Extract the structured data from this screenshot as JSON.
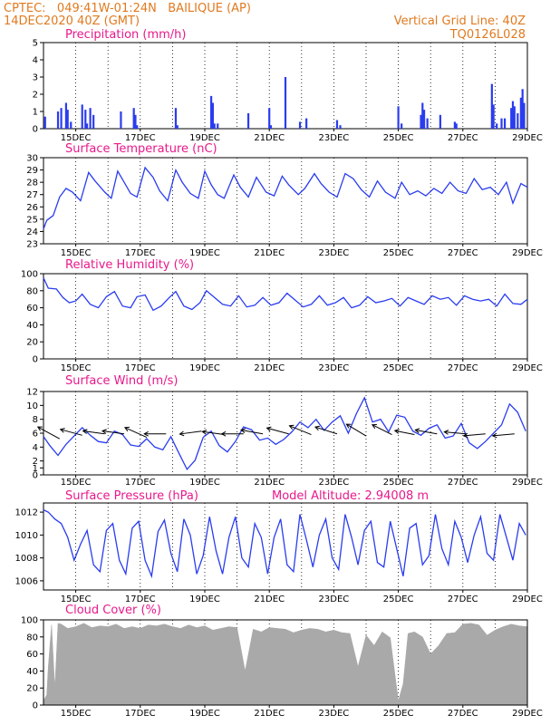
{
  "header": {
    "line1": "CPTEC:   049:41W-01:24N   BAILIQUE (AP)",
    "line2": "14DEC2020 40Z (GMT)",
    "grid_note": "Vertical Grid Line: 40Z",
    "code": "TQ0126L028"
  },
  "colors": {
    "line": "#2a3cf0",
    "bar": "#2a3cf0",
    "cloud": "#a9a9a9",
    "title": "#e8198b",
    "header": "#e07a1f"
  },
  "chart_data": [
    {
      "type": "bar",
      "title": "Precipitation (mm/h)",
      "ylim": [
        0,
        5
      ],
      "yticks": [
        0,
        1,
        2,
        3,
        4,
        5
      ],
      "x_range_days": [
        14,
        29
      ],
      "xtick_labels": [
        "15DEC",
        "17DEC",
        "19DEC",
        "21DEC",
        "23DEC",
        "25DEC",
        "27DEC",
        "29DEC"
      ],
      "x": [
        14.05,
        14.45,
        14.55,
        14.7,
        14.75,
        14.85,
        15.2,
        15.3,
        15.35,
        15.45,
        15.55,
        16.4,
        16.8,
        16.85,
        16.9,
        18.1,
        18.15,
        19.2,
        19.25,
        19.3,
        19.4,
        20.35,
        21.0,
        21.05,
        21.5,
        21.95,
        22.15,
        23.1,
        23.2,
        25.0,
        25.1,
        25.7,
        25.75,
        25.8,
        25.9,
        26.3,
        26.75,
        26.8,
        27.9,
        27.95,
        28.05,
        28.2,
        28.3,
        28.5,
        28.55,
        28.6,
        28.7,
        28.8,
        28.85,
        28.9
      ],
      "values": [
        0.7,
        1.0,
        1.2,
        1.5,
        1.1,
        0.4,
        1.4,
        1.1,
        0.3,
        1.2,
        0.8,
        1.0,
        1.2,
        0.8,
        0.2,
        1.2,
        0.2,
        1.9,
        1.5,
        0.3,
        0.3,
        0.9,
        1.2,
        0.2,
        3.0,
        0.4,
        0.6,
        0.5,
        0.2,
        1.3,
        0.3,
        0.8,
        1.5,
        1.1,
        0.6,
        0.8,
        0.4,
        0.3,
        2.6,
        1.4,
        0.3,
        0.6,
        0.6,
        1.2,
        1.6,
        1.3,
        0.9,
        1.8,
        2.3,
        1.5
      ]
    },
    {
      "type": "line",
      "title": "Surface Temperature (nC)",
      "ylim": [
        23,
        30
      ],
      "yticks": [
        23,
        24,
        25,
        26,
        27,
        28,
        29,
        30
      ],
      "x_range_days": [
        14,
        29
      ],
      "xtick_labels": [
        "15DEC",
        "17DEC",
        "19DEC",
        "21DEC",
        "23DEC",
        "25DEC",
        "27DEC",
        "29DEC"
      ],
      "x": [
        14.0,
        14.1,
        14.3,
        14.5,
        14.7,
        14.9,
        15.15,
        15.4,
        15.6,
        15.9,
        16.1,
        16.3,
        16.5,
        16.7,
        16.9,
        17.15,
        17.4,
        17.6,
        17.85,
        18.1,
        18.3,
        18.55,
        18.8,
        19.0,
        19.2,
        19.4,
        19.6,
        19.9,
        20.1,
        20.35,
        20.6,
        20.9,
        21.15,
        21.4,
        21.6,
        21.9,
        22.1,
        22.4,
        22.6,
        22.85,
        23.1,
        23.35,
        23.6,
        23.85,
        24.1,
        24.35,
        24.6,
        24.9,
        25.1,
        25.35,
        25.6,
        25.85,
        26.1,
        26.35,
        26.6,
        26.85,
        27.1,
        27.35,
        27.6,
        27.85,
        28.1,
        28.35,
        28.55,
        28.8,
        29.0
      ],
      "values": [
        24.2,
        24.9,
        25.3,
        26.8,
        27.5,
        27.2,
        26.5,
        28.8,
        28.1,
        27.2,
        26.7,
        28.9,
        28.0,
        27.1,
        26.8,
        29.2,
        28.4,
        27.3,
        26.5,
        29.0,
        28.0,
        27.1,
        26.7,
        28.9,
        27.8,
        27.0,
        26.7,
        28.6,
        27.6,
        26.8,
        28.4,
        27.2,
        26.9,
        28.5,
        27.8,
        27.0,
        27.5,
        28.7,
        27.9,
        27.2,
        26.8,
        28.7,
        28.3,
        27.4,
        26.8,
        28.1,
        27.2,
        26.7,
        28.0,
        27.0,
        27.3,
        26.9,
        27.5,
        27.1,
        28.0,
        27.3,
        27.1,
        28.3,
        27.4,
        27.6,
        27.0,
        28.0,
        26.3,
        27.9,
        27.6
      ]
    },
    {
      "type": "line",
      "title": "Relative Humidity (%)",
      "ylim": [
        0,
        100
      ],
      "yticks": [
        0,
        20,
        40,
        60,
        80,
        100
      ],
      "x_range_days": [
        14,
        29
      ],
      "xtick_labels": [
        "15DEC",
        "17DEC",
        "19DEC",
        "21DEC",
        "23DEC",
        "25DEC",
        "27DEC",
        "29DEC"
      ],
      "x": [
        14.0,
        14.15,
        14.4,
        14.6,
        14.8,
        15.0,
        15.2,
        15.45,
        15.7,
        15.95,
        16.2,
        16.45,
        16.7,
        16.9,
        17.15,
        17.4,
        17.65,
        17.9,
        18.1,
        18.35,
        18.6,
        18.85,
        19.05,
        19.3,
        19.55,
        19.8,
        20.05,
        20.3,
        20.55,
        20.8,
        21.05,
        21.3,
        21.55,
        21.8,
        22.05,
        22.3,
        22.55,
        22.8,
        23.05,
        23.3,
        23.55,
        23.8,
        24.05,
        24.3,
        24.55,
        24.8,
        25.05,
        25.3,
        25.55,
        25.8,
        26.05,
        26.3,
        26.55,
        26.8,
        27.05,
        27.3,
        27.55,
        27.8,
        28.05,
        28.3,
        28.55,
        28.8,
        29.0
      ],
      "values": [
        95,
        83,
        82,
        72,
        66,
        68,
        76,
        64,
        60,
        73,
        79,
        62,
        60,
        73,
        75,
        57,
        62,
        72,
        79,
        62,
        58,
        66,
        80,
        72,
        64,
        62,
        74,
        61,
        63,
        72,
        63,
        66,
        77,
        69,
        61,
        64,
        74,
        63,
        66,
        72,
        60,
        63,
        73,
        66,
        68,
        71,
        62,
        72,
        68,
        64,
        74,
        70,
        72,
        63,
        74,
        70,
        68,
        70,
        62,
        76,
        65,
        64,
        70
      ]
    },
    {
      "type": "line",
      "title": "Surface Wind (m/s)",
      "ylim": [
        0,
        12
      ],
      "yticks": [
        0,
        1,
        2,
        4,
        6,
        8,
        10,
        12
      ],
      "x_range_days": [
        14,
        29
      ],
      "xtick_labels": [
        "15DEC",
        "17DEC",
        "19DEC",
        "21DEC",
        "23DEC",
        "25DEC",
        "27DEC",
        "29DEC"
      ],
      "x": [
        14.0,
        14.2,
        14.45,
        14.7,
        14.95,
        15.2,
        15.45,
        15.7,
        15.95,
        16.2,
        16.45,
        16.7,
        16.95,
        17.2,
        17.45,
        17.7,
        17.95,
        18.2,
        18.45,
        18.7,
        18.95,
        19.2,
        19.45,
        19.7,
        19.95,
        20.2,
        20.45,
        20.7,
        20.95,
        21.2,
        21.45,
        21.7,
        21.95,
        22.2,
        22.45,
        22.7,
        22.95,
        23.2,
        23.45,
        23.7,
        23.95,
        24.2,
        24.45,
        24.7,
        24.95,
        25.2,
        25.45,
        25.7,
        25.95,
        26.2,
        26.45,
        26.7,
        26.95,
        27.2,
        27.45,
        27.7,
        27.95,
        28.2,
        28.45,
        28.7,
        28.95
      ],
      "values": [
        5.5,
        4.2,
        2.8,
        4.4,
        5.6,
        6.8,
        5.7,
        4.8,
        4.6,
        6.3,
        5.8,
        4.3,
        4.1,
        5.2,
        4.0,
        3.6,
        5.5,
        3.1,
        0.8,
        2.1,
        5.4,
        6.3,
        4.2,
        3.3,
        4.8,
        6.9,
        6.5,
        5.0,
        5.3,
        4.4,
        5.1,
        6.2,
        7.6,
        6.8,
        8.0,
        6.4,
        7.6,
        8.5,
        6.0,
        8.8,
        11.1,
        7.6,
        8.0,
        6.2,
        8.6,
        8.3,
        6.3,
        5.7,
        6.7,
        7.2,
        5.3,
        5.6,
        7.4,
        4.6,
        3.8,
        4.8,
        6.0,
        7.2,
        10.2,
        9.0,
        6.3
      ],
      "arrows": [
        {
          "x": 14.5,
          "y": 5.2,
          "dx": 1.0,
          "dy": -1.2
        },
        {
          "x": 15.2,
          "y": 5.7,
          "dx": 1.0,
          "dy": -0.6
        },
        {
          "x": 15.9,
          "y": 5.9,
          "dx": 1.0,
          "dy": -0.3
        },
        {
          "x": 16.5,
          "y": 5.9,
          "dx": 1.0,
          "dy": -0.3
        },
        {
          "x": 17.2,
          "y": 5.4,
          "dx": 1.0,
          "dy": -1.0
        },
        {
          "x": 17.8,
          "y": 5.9,
          "dx": 1.0,
          "dy": 0.0
        },
        {
          "x": 18.9,
          "y": 6.3,
          "dx": 1.0,
          "dy": 0.3
        },
        {
          "x": 19.6,
          "y": 5.8,
          "dx": 1.0,
          "dy": -0.3
        },
        {
          "x": 20.2,
          "y": 5.9,
          "dx": 1.0,
          "dy": 0.0
        },
        {
          "x": 20.8,
          "y": 5.9,
          "dx": 1.0,
          "dy": -0.4
        },
        {
          "x": 21.6,
          "y": 5.9,
          "dx": 1.0,
          "dy": -0.6
        },
        {
          "x": 22.3,
          "y": 5.8,
          "dx": 1.0,
          "dy": -0.9
        },
        {
          "x": 23.1,
          "y": 5.9,
          "dx": 1.0,
          "dy": -0.7
        },
        {
          "x": 24.0,
          "y": 5.6,
          "dx": 0.9,
          "dy": -1.2
        },
        {
          "x": 24.8,
          "y": 5.8,
          "dx": 0.9,
          "dy": -1.0
        },
        {
          "x": 25.5,
          "y": 5.8,
          "dx": 0.9,
          "dy": -0.4
        },
        {
          "x": 26.2,
          "y": 5.9,
          "dx": 1.0,
          "dy": -0.4
        },
        {
          "x": 27.1,
          "y": 5.9,
          "dx": 1.0,
          "dy": -0.2
        },
        {
          "x": 27.7,
          "y": 5.9,
          "dx": 1.0,
          "dy": 0.2
        },
        {
          "x": 28.6,
          "y": 5.9,
          "dx": 1.0,
          "dy": 0.2
        }
      ]
    },
    {
      "type": "line",
      "title": "Surface Pressure (hPa)",
      "subtitle": "Model Altitude: 2.94008 m",
      "ylim": [
        1005.2,
        1012.8
      ],
      "yticks": [
        1006,
        1008,
        1010,
        1012
      ],
      "x_range_days": [
        14,
        29
      ],
      "xtick_labels": [
        "15DEC",
        "17DEC",
        "19DEC",
        "21DEC",
        "23DEC",
        "25DEC",
        "27DEC",
        "29DEC"
      ],
      "x": [
        14.0,
        14.15,
        14.35,
        14.55,
        14.75,
        14.95,
        15.15,
        15.35,
        15.55,
        15.75,
        15.95,
        16.15,
        16.35,
        16.55,
        16.75,
        16.95,
        17.15,
        17.35,
        17.55,
        17.75,
        17.95,
        18.15,
        18.35,
        18.55,
        18.75,
        18.95,
        19.15,
        19.35,
        19.55,
        19.75,
        19.95,
        20.15,
        20.35,
        20.55,
        20.75,
        20.95,
        21.15,
        21.35,
        21.55,
        21.75,
        21.95,
        22.15,
        22.35,
        22.55,
        22.75,
        22.95,
        23.15,
        23.35,
        23.55,
        23.75,
        23.95,
        24.15,
        24.35,
        24.55,
        24.75,
        24.95,
        25.15,
        25.35,
        25.55,
        25.75,
        25.95,
        26.15,
        26.35,
        26.55,
        26.75,
        26.95,
        27.15,
        27.35,
        27.55,
        27.75,
        27.95,
        28.15,
        28.35,
        28.55,
        28.75,
        28.95
      ],
      "values": [
        1012.2,
        1012.0,
        1011.4,
        1011.0,
        1009.8,
        1007.8,
        1009.2,
        1010.4,
        1007.4,
        1006.8,
        1010.4,
        1011.0,
        1007.8,
        1006.6,
        1010.6,
        1011.2,
        1007.8,
        1006.4,
        1010.3,
        1011.3,
        1008.4,
        1006.8,
        1011.4,
        1010.0,
        1006.6,
        1008.2,
        1011.6,
        1008.6,
        1006.6,
        1009.8,
        1011.6,
        1008.0,
        1007.2,
        1011.0,
        1009.8,
        1006.6,
        1009.8,
        1011.4,
        1007.4,
        1006.8,
        1011.8,
        1009.6,
        1007.2,
        1010.0,
        1011.4,
        1008.0,
        1007.0,
        1011.8,
        1009.8,
        1007.4,
        1010.4,
        1011.2,
        1007.6,
        1007.2,
        1011.2,
        1008.8,
        1006.4,
        1010.6,
        1011.0,
        1007.4,
        1008.2,
        1011.8,
        1008.8,
        1007.4,
        1011.2,
        1009.8,
        1007.6,
        1010.0,
        1011.6,
        1008.4,
        1007.8,
        1011.8,
        1009.8,
        1007.8,
        1011.0,
        1010.0
      ]
    },
    {
      "type": "area",
      "title": "Cloud Cover (%)",
      "ylim": [
        0,
        100
      ],
      "yticks": [
        0,
        20,
        40,
        60,
        80,
        100
      ],
      "x_range_days": [
        14,
        29
      ],
      "xtick_labels": [
        "15DEC",
        "17DEC",
        "19DEC",
        "21DEC",
        "23DEC",
        "25DEC",
        "27DEC",
        "29DEC"
      ],
      "x": [
        14.0,
        14.1,
        14.15,
        14.25,
        14.35,
        14.45,
        14.55,
        14.75,
        15.0,
        15.25,
        15.5,
        15.75,
        16.0,
        16.25,
        16.5,
        16.75,
        17.0,
        17.25,
        17.5,
        17.75,
        18.0,
        18.25,
        18.5,
        18.75,
        19.0,
        19.25,
        19.5,
        19.75,
        20.0,
        20.25,
        20.5,
        20.75,
        21.0,
        21.25,
        21.5,
        21.75,
        22.0,
        22.25,
        22.5,
        22.75,
        23.0,
        23.25,
        23.5,
        23.75,
        24.0,
        24.25,
        24.5,
        24.75,
        25.0,
        25.15,
        25.3,
        25.5,
        25.75,
        26.0,
        26.25,
        26.5,
        26.75,
        27.0,
        27.25,
        27.5,
        27.75,
        28.0,
        28.25,
        28.5,
        28.75,
        29.0
      ],
      "values": [
        5,
        12,
        45,
        94,
        20,
        96,
        95,
        90,
        92,
        96,
        91,
        93,
        92,
        95,
        90,
        92,
        90,
        94,
        93,
        95,
        92,
        90,
        94,
        91,
        93,
        88,
        90,
        92,
        91,
        40,
        89,
        86,
        91,
        90,
        89,
        85,
        88,
        90,
        89,
        86,
        88,
        85,
        84,
        45,
        82,
        70,
        86,
        79,
        5,
        25,
        84,
        86,
        80,
        60,
        70,
        84,
        85,
        95,
        96,
        94,
        82,
        88,
        92,
        95,
        93,
        92
      ]
    }
  ]
}
